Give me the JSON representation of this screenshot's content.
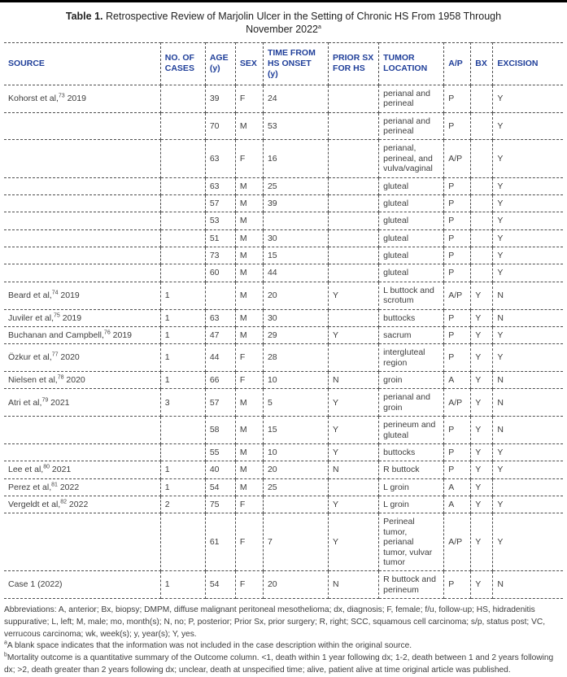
{
  "colors": {
    "header_text": "#21409a",
    "body_text": "#3d3d3d",
    "border": "#4d4d4d",
    "top_bar": "#000000"
  },
  "title": {
    "prefix": "Table 1.",
    "rest": " Retrospective Review of Marjolin Ulcer in the Setting of Chronic HS From 1958 Through November 2022",
    "sup": "a"
  },
  "table": {
    "columns": [
      "SOURCE",
      "NO. OF CASES",
      "AGE (y)",
      "SEX",
      "TIME FROM HS ONSET (y)",
      "PRIOR SX FOR HS",
      "TUMOR LOCATION",
      "A/P",
      "BX",
      "EXCISION"
    ],
    "rows": [
      {
        "source": "Kohorst et al,",
        "source_sup": "73",
        "source_tail": " 2019",
        "cases": "",
        "age": "39",
        "sex": "F",
        "time": "24",
        "prior_sx": "",
        "location": "perianal and perineal",
        "ap": "P",
        "bx": "",
        "excision": "Y"
      },
      {
        "source": "",
        "source_sup": "",
        "source_tail": "",
        "cases": "",
        "age": "70",
        "sex": "M",
        "time": "53",
        "prior_sx": "",
        "location": "perianal and perineal",
        "ap": "P",
        "bx": "",
        "excision": "Y"
      },
      {
        "source": "",
        "source_sup": "",
        "source_tail": "",
        "cases": "",
        "age": "63",
        "sex": "F",
        "time": "16",
        "prior_sx": "",
        "location": "perianal, perineal, and vulva/vaginal",
        "ap": "A/P",
        "bx": "",
        "excision": "Y"
      },
      {
        "source": "",
        "source_sup": "",
        "source_tail": "",
        "cases": "",
        "age": "63",
        "sex": "M",
        "time": "25",
        "prior_sx": "",
        "location": "gluteal",
        "ap": "P",
        "bx": "",
        "excision": "Y"
      },
      {
        "source": "",
        "source_sup": "",
        "source_tail": "",
        "cases": "",
        "age": "57",
        "sex": "M",
        "time": "39",
        "prior_sx": "",
        "location": "gluteal",
        "ap": "P",
        "bx": "",
        "excision": "Y"
      },
      {
        "source": "",
        "source_sup": "",
        "source_tail": "",
        "cases": "",
        "age": "53",
        "sex": "M",
        "time": "",
        "prior_sx": "",
        "location": "gluteal",
        "ap": "P",
        "bx": "",
        "excision": "Y"
      },
      {
        "source": "",
        "source_sup": "",
        "source_tail": "",
        "cases": "",
        "age": "51",
        "sex": "M",
        "time": "30",
        "prior_sx": "",
        "location": "gluteal",
        "ap": "P",
        "bx": "",
        "excision": "Y"
      },
      {
        "source": "",
        "source_sup": "",
        "source_tail": "",
        "cases": "",
        "age": "73",
        "sex": "M",
        "time": "15",
        "prior_sx": "",
        "location": "gluteal",
        "ap": "P",
        "bx": "",
        "excision": "Y"
      },
      {
        "source": "",
        "source_sup": "",
        "source_tail": "",
        "cases": "",
        "age": "60",
        "sex": "M",
        "time": "44",
        "prior_sx": "",
        "location": "gluteal",
        "ap": "P",
        "bx": "",
        "excision": "Y"
      },
      {
        "source": "Beard et al,",
        "source_sup": "74",
        "source_tail": " 2019",
        "cases": "1",
        "age": "",
        "sex": "M",
        "time": "20",
        "prior_sx": "Y",
        "location": "L buttock and scrotum",
        "ap": "A/P",
        "bx": "Y",
        "excision": "N"
      },
      {
        "source": "Juviler et al,",
        "source_sup": "75",
        "source_tail": " 2019",
        "cases": "1",
        "age": "63",
        "sex": "M",
        "time": "30",
        "prior_sx": "",
        "location": "buttocks",
        "ap": "P",
        "bx": "Y",
        "excision": "N"
      },
      {
        "source": "Buchanan and Campbell,",
        "source_sup": "76",
        "source_tail": " 2019",
        "cases": "1",
        "age": "47",
        "sex": "M",
        "time": "29",
        "prior_sx": "Y",
        "location": "sacrum",
        "ap": "P",
        "bx": "Y",
        "excision": "Y"
      },
      {
        "source": "Özkur et al,",
        "source_sup": "77",
        "source_tail": " 2020",
        "cases": "1",
        "age": "44",
        "sex": "F",
        "time": "28",
        "prior_sx": "",
        "location": "intergluteal region",
        "ap": "P",
        "bx": "Y",
        "excision": "Y"
      },
      {
        "source": "Nielsen et al,",
        "source_sup": "78",
        "source_tail": " 2020",
        "cases": "1",
        "age": "66",
        "sex": "F",
        "time": "10",
        "prior_sx": "N",
        "location": "groin",
        "ap": "A",
        "bx": "Y",
        "excision": "N"
      },
      {
        "source": "Atri et al,",
        "source_sup": "79",
        "source_tail": " 2021",
        "cases": "3",
        "age": "57",
        "sex": "M",
        "time": "5",
        "prior_sx": "Y",
        "location": "perianal and groin",
        "ap": "A/P",
        "bx": "Y",
        "excision": "N"
      },
      {
        "source": "",
        "source_sup": "",
        "source_tail": "",
        "cases": "",
        "age": "58",
        "sex": "M",
        "time": "15",
        "prior_sx": "Y",
        "location": "perineum and gluteal",
        "ap": "P",
        "bx": "Y",
        "excision": "N"
      },
      {
        "source": "",
        "source_sup": "",
        "source_tail": "",
        "cases": "",
        "age": "55",
        "sex": "M",
        "time": "10",
        "prior_sx": "Y",
        "location": "buttocks",
        "ap": "P",
        "bx": "Y",
        "excision": "Y"
      },
      {
        "source": "Lee et al,",
        "source_sup": "80",
        "source_tail": " 2021",
        "cases": "1",
        "age": "40",
        "sex": "M",
        "time": "20",
        "prior_sx": "N",
        "location": "R buttock",
        "ap": "P",
        "bx": "Y",
        "excision": "Y"
      },
      {
        "source": "Perez et al,",
        "source_sup": "81",
        "source_tail": " 2022",
        "cases": "1",
        "age": "54",
        "sex": "M",
        "time": "25",
        "prior_sx": "",
        "location": "L groin",
        "ap": "A",
        "bx": "Y",
        "excision": ""
      },
      {
        "source": "Vergeldt et al,",
        "source_sup": "82",
        "source_tail": " 2022",
        "cases": "2",
        "age": "75",
        "sex": "F",
        "time": "",
        "prior_sx": "Y",
        "location": "L groin",
        "ap": "A",
        "bx": "Y",
        "excision": "Y"
      },
      {
        "source": "",
        "source_sup": "",
        "source_tail": "",
        "cases": "",
        "age": "61",
        "sex": "F",
        "time": "7",
        "prior_sx": "Y",
        "location": "Perineal tumor, perianal tumor, vulvar tumor",
        "ap": "A/P",
        "bx": "Y",
        "excision": "Y"
      },
      {
        "source": "Case 1 (2022)",
        "source_sup": "",
        "source_tail": "",
        "cases": "1",
        "age": "54",
        "sex": "F",
        "time": "20",
        "prior_sx": "N",
        "location": "R buttock and perineum",
        "ap": "P",
        "bx": "Y",
        "excision": "N"
      }
    ]
  },
  "footnotes": [
    {
      "sup": "",
      "text": "Abbreviations: A, anterior; Bx, biopsy; DMPM, diffuse malignant peritoneal mesothelioma; dx, diagnosis; F, female; f/u, follow-up; HS, hidradenitis suppurative; L, left; M, male; mo, month(s); N, no; P, posterior; Prior Sx, prior surgery; R, right; SCC, squamous cell carcinoma; s/p, status post; VC, verrucous carcinoma; wk, week(s); y, year(s); Y, yes."
    },
    {
      "sup": "a",
      "text": "A blank space indicates that the information was not included in the case description within the original source."
    },
    {
      "sup": "b",
      "text": "Mortality outcome is a quantitative summary of the Outcome column. <1, death within 1 year following dx; 1-2, death between 1 and 2 years following dx; >2, death greater than 2 years following dx; unclear, death at unspecified time; alive, patient alive at time original article was published."
    }
  ]
}
